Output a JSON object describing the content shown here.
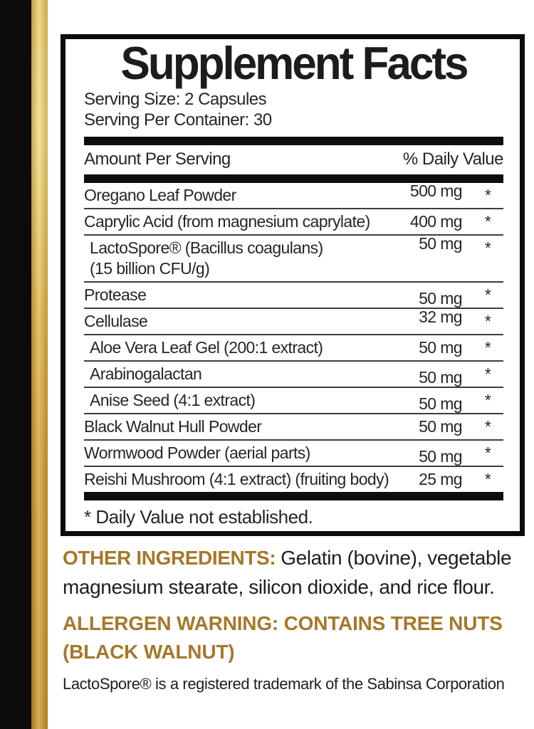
{
  "colors": {
    "gold_text": "#a5782b",
    "stripe_gold_light": "#f0d878",
    "stripe_gold_dark": "#c88f22",
    "stripe_black": "#0b0b0b",
    "panel_border": "#0c0c0c",
    "body_text": "#262626"
  },
  "panel": {
    "title": "Supplement Facts",
    "serving_size": "Serving Size: 2 Capsules",
    "servings_per_container": "Serving Per Container: 30",
    "columns": {
      "amount": "Amount Per Serving",
      "daily_value": "% Daily Value"
    },
    "rows": [
      {
        "name": "Oregano Leaf Powder",
        "amount": "500 mg",
        "dv": "*"
      },
      {
        "name": "Caprylic Acid (from magnesium caprylate)",
        "amount": "400 mg",
        "dv": "*"
      },
      {
        "name": "LactoSpore® (Bacillus coagulans)",
        "name_line2": "(15 billion CFU/g)",
        "amount": "50 mg",
        "dv": "*",
        "indent": true
      },
      {
        "name": "Protease",
        "amount": "50 mg",
        "dv": "*"
      },
      {
        "name": "Cellulase",
        "amount": "32 mg",
        "dv": "*"
      },
      {
        "name": "Aloe Vera Leaf Gel (200:1 extract)",
        "amount": "50 mg",
        "dv": "*",
        "indent": true
      },
      {
        "name": "Arabinogalactan",
        "amount": "50 mg",
        "dv": "*",
        "indent": true
      },
      {
        "name": "Anise Seed (4:1 extract)",
        "amount": "50 mg",
        "dv": "*",
        "indent": true
      },
      {
        "name": "Black Walnut Hull Powder",
        "amount": "50 mg",
        "dv": "*"
      },
      {
        "name": "Wormwood Powder (aerial parts)",
        "amount": "50 mg",
        "dv": "*"
      },
      {
        "name": "Reishi Mushroom (4:1 extract) (fruiting body)",
        "amount": "25 mg",
        "dv": "*"
      }
    ],
    "footnote": "* Daily Value not established."
  },
  "other_ingredients": {
    "label": "OTHER INGREDIENTS:",
    "text": "Gelatin (bovine), vegetable magnesium stearate, silicon dioxide, and rice flour."
  },
  "allergen_warning": "ALLERGEN WARNING: CONTAINS TREE NUTS (BLACK WALNUT)",
  "trademark_note": "LactoSpore® is a registered trademark of the Sabinsa Corporation"
}
